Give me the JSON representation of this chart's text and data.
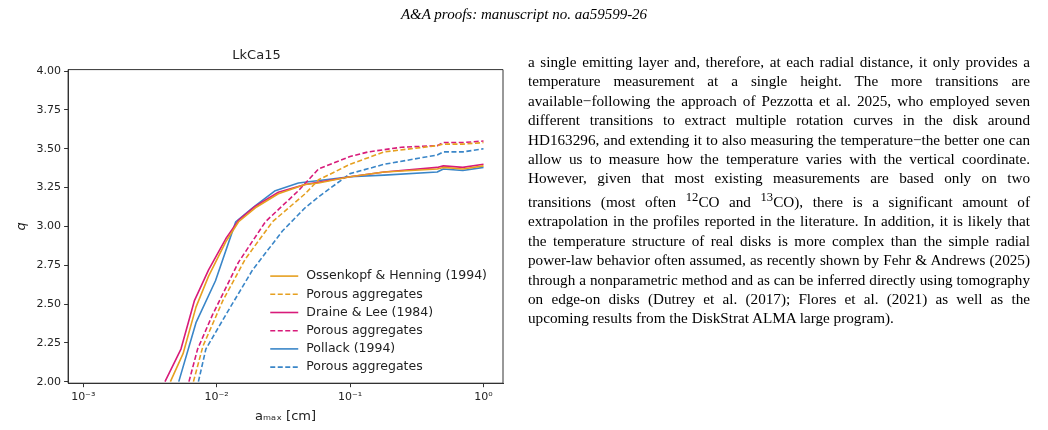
{
  "chart_data": {
    "type": "line",
    "title": "LkCa15",
    "xlabel": "aₘₐₓ [cm]",
    "ylabel": "q",
    "log": "x",
    "grid": false,
    "legend": "bottom right",
    "marker": "none",
    "xlim": [
      0.00077,
      1.4
    ],
    "ylim": [
      1.99,
      4.01
    ],
    "xticks": [
      {
        "value": 0.001,
        "label": "10⁻³"
      },
      {
        "value": 0.01,
        "label": "10⁻²"
      },
      {
        "value": 0.1,
        "label": "10⁻¹"
      },
      {
        "value": 1,
        "label": "10⁰"
      }
    ],
    "yticks": [
      {
        "value": 2,
        "label": "2.00"
      },
      {
        "value": 2.25,
        "label": "2.25"
      },
      {
        "value": 2.5,
        "label": "2.50"
      },
      {
        "value": 2.75,
        "label": "2.75"
      },
      {
        "value": 3,
        "label": "3.00"
      },
      {
        "value": 3.25,
        "label": "3.25"
      },
      {
        "value": 3.5,
        "label": "3.50"
      },
      {
        "value": 3.75,
        "label": "3.75"
      },
      {
        "value": 4,
        "label": "4.00"
      }
    ],
    "series": [
      {
        "name": "Ossenkopf & Henning (1994)",
        "color": "#e6a020",
        "line_style": "solid",
        "x": [
          0.0045,
          0.0056,
          0.007,
          0.0087,
          0.0117,
          0.0146,
          0.0195,
          0.029,
          0.046,
          0.058,
          0.1,
          0.18,
          0.45,
          0.5,
          0.7,
          1.0
        ],
        "values": [
          2.0,
          2.18,
          2.48,
          2.68,
          2.9,
          3.03,
          3.12,
          3.21,
          3.27,
          3.28,
          3.32,
          3.35,
          3.37,
          3.38,
          3.37,
          3.39
        ]
      },
      {
        "name": "Porous aggregates",
        "color": "#e6a020",
        "line_style": "dashed",
        "x": [
          0.0067,
          0.0079,
          0.0111,
          0.0164,
          0.0262,
          0.046,
          0.058,
          0.1,
          0.18,
          0.45,
          0.5,
          0.7,
          1.0
        ],
        "values": [
          2.0,
          2.23,
          2.52,
          2.79,
          3.03,
          3.21,
          3.3,
          3.4,
          3.48,
          3.52,
          3.53,
          3.53,
          3.54
        ]
      },
      {
        "name": "Draine & Lee (1984)",
        "color": "#d81b7a",
        "line_style": "solid",
        "x": [
          0.0041,
          0.0054,
          0.0068,
          0.0087,
          0.0117,
          0.0146,
          0.0195,
          0.029,
          0.046,
          0.1,
          0.18,
          0.45,
          0.5,
          0.7,
          1.0
        ],
        "values": [
          2.0,
          2.21,
          2.52,
          2.72,
          2.92,
          3.04,
          3.13,
          3.22,
          3.27,
          3.32,
          3.35,
          3.38,
          3.39,
          3.38,
          3.4
        ]
      },
      {
        "name": "Porous aggregates",
        "color": "#d81b7a",
        "line_style": "dashed",
        "x": [
          0.0062,
          0.0072,
          0.0093,
          0.0146,
          0.0232,
          0.041,
          0.058,
          0.1,
          0.137,
          0.243,
          0.45,
          0.5,
          0.7,
          1.0
        ],
        "values": [
          2.0,
          2.21,
          2.43,
          2.77,
          3.03,
          3.23,
          3.37,
          3.45,
          3.48,
          3.51,
          3.52,
          3.54,
          3.54,
          3.55
        ]
      },
      {
        "name": "Pollack (1994)",
        "color": "#3a86c8",
        "line_style": "solid",
        "x": [
          0.0052,
          0.007,
          0.0098,
          0.0139,
          0.0186,
          0.0275,
          0.041,
          0.1,
          0.18,
          0.45,
          0.5,
          0.7,
          1.0
        ],
        "values": [
          2.0,
          2.38,
          2.65,
          3.03,
          3.12,
          3.23,
          3.28,
          3.32,
          3.33,
          3.35,
          3.37,
          3.36,
          3.38
        ]
      },
      {
        "name": "Porous aggregates",
        "color": "#3a86c8",
        "line_style": "dashed",
        "x": [
          0.0073,
          0.0083,
          0.0117,
          0.0186,
          0.0311,
          0.046,
          0.058,
          0.1,
          0.18,
          0.45,
          0.5,
          0.7,
          1.0
        ],
        "values": [
          2.0,
          2.21,
          2.43,
          2.72,
          2.97,
          3.12,
          3.19,
          3.34,
          3.4,
          3.46,
          3.48,
          3.48,
          3.5
        ]
      }
    ],
    "annotations": [
      "A&A proofs: manuscript no. aa59599-26",
      "a single emitting layer and, therefore, at each radial distance, it only provides a temperature measurement at a single height. The more transitions are available−following the approach of Pezzotta et al. 2025, who employed seven different transitions to extract multiple rotation curves in the disk around HD163296, and extending it to also measuring the temperature−the better one can allow us to measure how the temperature varies with the vertical coordinate. However, given that most existing measurements are based only on two transitions (most often $^{12}$CO and $^{13}$CO), there is a significant amount of extrapolation in the profiles reported in the literature. In addition, it is likely that the temperature structure of real disks is more complex than the simple radial power-law behavior often assumed, as recently shown by Fehr & Andrews (2025) through a nonparametric method and as can be inferred directly using tomography on edge-on disks (Dutrey et al. (2017); Flores et al. (2021) as well as the upcoming results from the DiskStrat ALMA large program)."
    ]
  }
}
